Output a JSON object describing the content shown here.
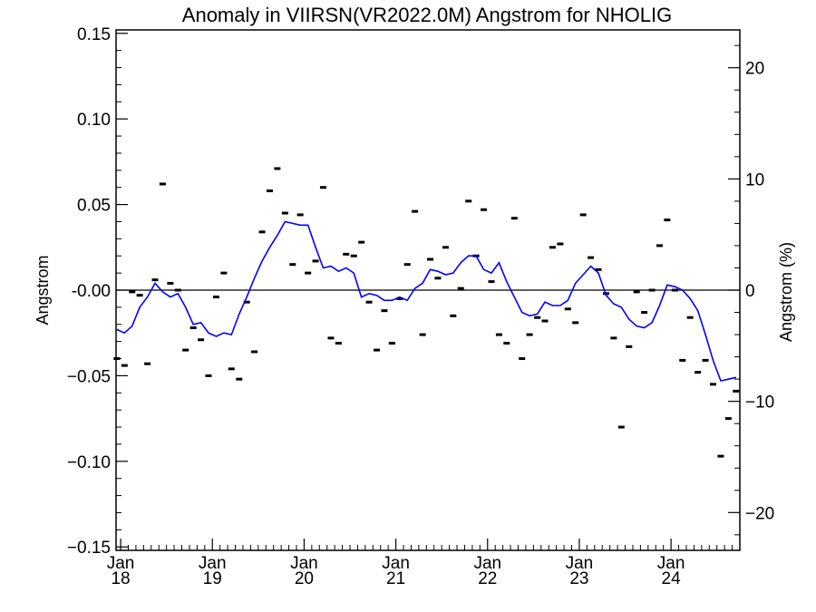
{
  "chart_data": {
    "type": "line",
    "title": "Anomaly in VIIRSN(VR2022.0M) Angstrom for NHOLIG",
    "ylabel": "Angstrom",
    "ylabel_right": "Angstrom (%)",
    "ylim": [
      -0.152,
      0.152
    ],
    "ylim_right": [
      -23.4,
      23.4
    ],
    "y_ticks": [
      -0.15,
      -0.1,
      -0.05,
      0.0,
      0.05,
      0.1,
      0.15
    ],
    "y_tick_labels": [
      "−0.15",
      "−0.10",
      "−0.05",
      "-0.00",
      "0.05",
      "0.10",
      "0.15"
    ],
    "y_ticks_right": [
      -20,
      -10,
      0,
      10,
      20
    ],
    "y_tick_labels_right": [
      "−20",
      "−10",
      "0",
      "10",
      "20"
    ],
    "xlim": [
      2017.95,
      2024.75
    ],
    "x_ticks": [
      2018,
      2019,
      2020,
      2021,
      2022,
      2023,
      2024
    ],
    "x_tick_labels": [
      {
        "month": "Jan",
        "year": "18"
      },
      {
        "month": "Jan",
        "year": "19"
      },
      {
        "month": "Jan",
        "year": "20"
      },
      {
        "month": "Jan",
        "year": "21"
      },
      {
        "month": "Jan",
        "year": "22"
      },
      {
        "month": "Jan",
        "year": "23"
      },
      {
        "month": "Jan",
        "year": "24"
      }
    ],
    "grid": false,
    "zero_line": true,
    "series": [
      {
        "kind": "smoothed",
        "color": "#0000ff",
        "x": [
          2017.958,
          2018.042,
          2018.125,
          2018.208,
          2018.292,
          2018.375,
          2018.458,
          2018.542,
          2018.625,
          2018.708,
          2018.792,
          2018.875,
          2018.958,
          2019.042,
          2019.125,
          2019.208,
          2019.292,
          2019.375,
          2019.458,
          2019.542,
          2019.625,
          2019.708,
          2019.792,
          2019.875,
          2019.958,
          2020.042,
          2020.125,
          2020.208,
          2020.292,
          2020.375,
          2020.458,
          2020.542,
          2020.625,
          2020.708,
          2020.792,
          2020.875,
          2020.958,
          2021.042,
          2021.125,
          2021.208,
          2021.292,
          2021.375,
          2021.458,
          2021.542,
          2021.625,
          2021.708,
          2021.792,
          2021.875,
          2021.958,
          2022.042,
          2022.125,
          2022.208,
          2022.292,
          2022.375,
          2022.458,
          2022.542,
          2022.625,
          2022.708,
          2022.792,
          2022.875,
          2022.958,
          2023.042,
          2023.125,
          2023.208,
          2023.292,
          2023.375,
          2023.458,
          2023.542,
          2023.625,
          2023.708,
          2023.792,
          2023.875,
          2023.958,
          2024.042,
          2024.125,
          2024.208,
          2024.292,
          2024.375,
          2024.458,
          2024.542,
          2024.625,
          2024.708
        ],
        "y": [
          -0.023,
          -0.025,
          -0.021,
          -0.01,
          -0.004,
          0.004,
          -0.001,
          -0.004,
          -0.002,
          -0.01,
          -0.02,
          -0.019,
          -0.025,
          -0.027,
          -0.025,
          -0.026,
          -0.014,
          -0.004,
          0.007,
          0.017,
          0.025,
          0.032,
          0.04,
          0.039,
          0.038,
          0.038,
          0.025,
          0.013,
          0.014,
          0.011,
          0.013,
          0.01,
          -0.004,
          -0.002,
          -0.003,
          -0.006,
          -0.006,
          -0.004,
          -0.006,
          0.001,
          0.004,
          0.012,
          0.011,
          0.009,
          0.01,
          0.016,
          0.02,
          0.02,
          0.012,
          0.01,
          0.016,
          0.005,
          -0.004,
          -0.013,
          -0.015,
          -0.014,
          -0.007,
          -0.009,
          -0.009,
          -0.006,
          0.004,
          0.009,
          0.014,
          0.01,
          -0.003,
          -0.008,
          -0.01,
          -0.017,
          -0.021,
          -0.022,
          -0.019,
          -0.009,
          0.003,
          0.002,
          0.0,
          -0.005,
          -0.012,
          -0.026,
          -0.041,
          -0.053,
          -0.052,
          -0.051
        ]
      },
      {
        "kind": "monthly",
        "color": "#000000",
        "x": [
          2017.958,
          2018.042,
          2018.125,
          2018.208,
          2018.292,
          2018.375,
          2018.458,
          2018.542,
          2018.625,
          2018.708,
          2018.792,
          2018.875,
          2018.958,
          2019.042,
          2019.125,
          2019.208,
          2019.292,
          2019.375,
          2019.458,
          2019.542,
          2019.625,
          2019.708,
          2019.792,
          2019.875,
          2019.958,
          2020.042,
          2020.125,
          2020.208,
          2020.292,
          2020.375,
          2020.458,
          2020.542,
          2020.625,
          2020.708,
          2020.792,
          2020.875,
          2020.958,
          2021.042,
          2021.125,
          2021.208,
          2021.292,
          2021.375,
          2021.458,
          2021.542,
          2021.625,
          2021.708,
          2021.792,
          2021.875,
          2021.958,
          2022.042,
          2022.125,
          2022.208,
          2022.292,
          2022.375,
          2022.458,
          2022.542,
          2022.625,
          2022.708,
          2022.792,
          2022.875,
          2022.958,
          2023.042,
          2023.125,
          2023.208,
          2023.292,
          2023.375,
          2023.458,
          2023.542,
          2023.625,
          2023.708,
          2023.792,
          2023.875,
          2023.958,
          2024.042,
          2024.125,
          2024.208,
          2024.292,
          2024.375,
          2024.458,
          2024.542,
          2024.625,
          2024.708
        ],
        "y": [
          -0.04,
          -0.044,
          -0.001,
          -0.003,
          -0.043,
          0.006,
          0.062,
          0.004,
          0.0,
          -0.035,
          -0.022,
          -0.029,
          -0.05,
          -0.004,
          0.01,
          -0.046,
          -0.052,
          -0.007,
          -0.036,
          0.034,
          0.058,
          0.071,
          0.045,
          0.015,
          0.044,
          0.01,
          0.017,
          0.06,
          -0.028,
          -0.031,
          0.021,
          0.02,
          0.028,
          -0.007,
          -0.035,
          -0.012,
          -0.031,
          -0.005,
          0.015,
          0.046,
          -0.026,
          0.018,
          0.007,
          0.025,
          -0.015,
          0.001,
          0.052,
          0.02,
          0.047,
          0.005,
          -0.026,
          -0.031,
          0.042,
          -0.04,
          -0.026,
          -0.016,
          -0.018,
          0.025,
          0.027,
          -0.011,
          -0.019,
          0.044,
          0.019,
          0.012,
          -0.002,
          -0.028,
          -0.08,
          -0.033,
          -0.001,
          -0.013,
          0.0,
          0.026,
          0.041,
          0.0,
          -0.041,
          -0.016,
          -0.048,
          -0.041,
          -0.055,
          -0.097,
          -0.075,
          -0.059
        ]
      }
    ]
  }
}
